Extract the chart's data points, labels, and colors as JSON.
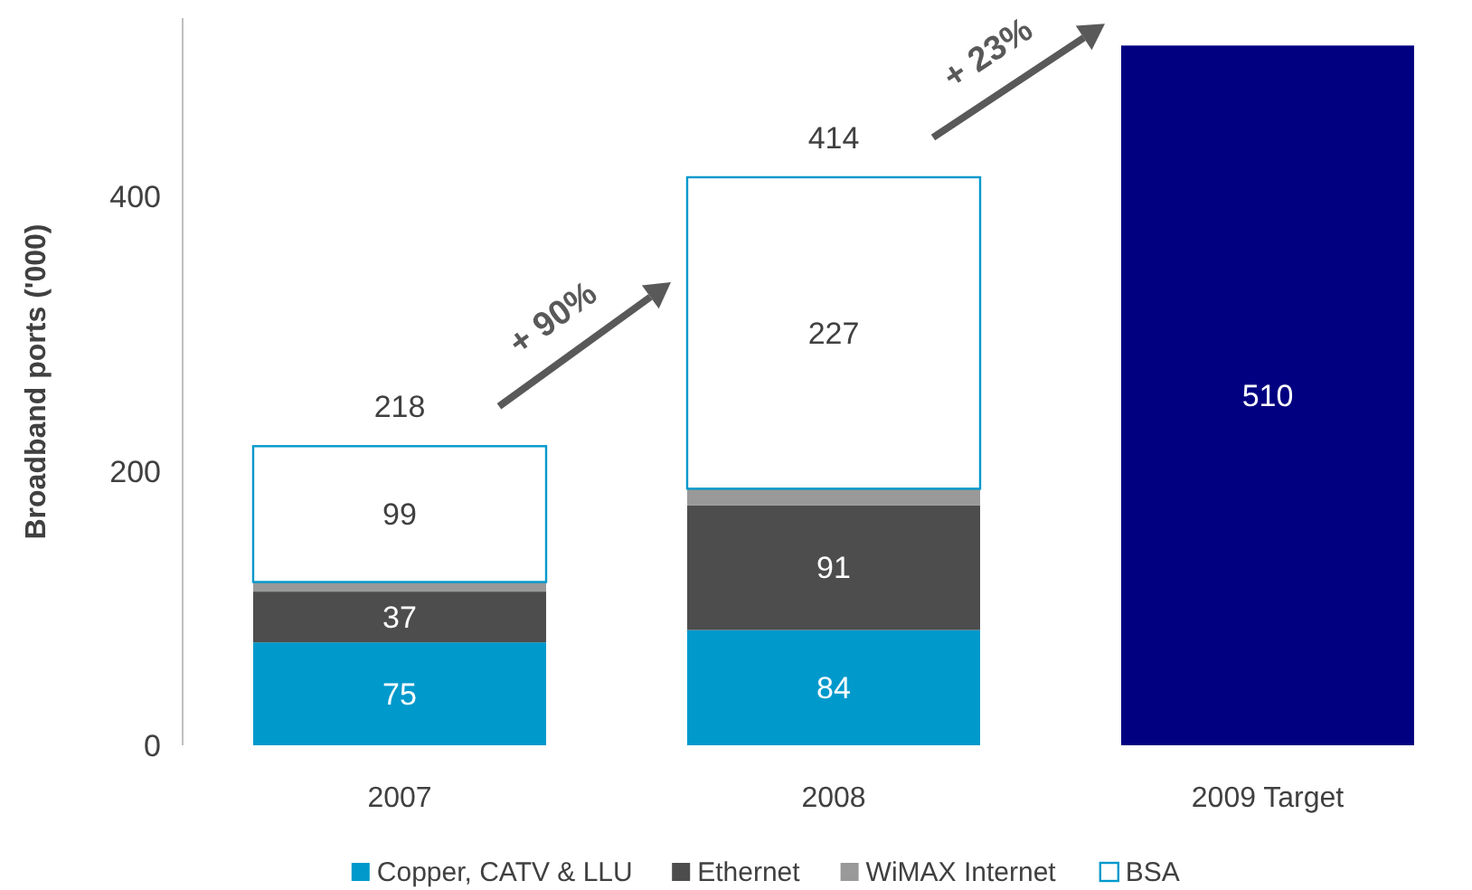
{
  "chart_data": {
    "type": "bar",
    "stacked": true,
    "ylabel": "Broadband ports ('000)",
    "categories": [
      "2007",
      "2008",
      "2009 Target"
    ],
    "series": [
      {
        "name": "Copper, CATV & LLU",
        "color": "#0099cc",
        "values": [
          75,
          84,
          null
        ],
        "value_labels": [
          "75",
          "84",
          null
        ]
      },
      {
        "name": "Ethernet",
        "color": "#4d4d4d",
        "values": [
          37,
          91,
          null
        ],
        "value_labels": [
          "37",
          "91",
          null
        ]
      },
      {
        "name": "WiMAX Internet",
        "color": "#999999",
        "values": [
          7,
          12,
          null
        ],
        "value_labels": [
          null,
          null,
          null
        ]
      },
      {
        "name": "BSA",
        "color": "#ffffff",
        "values": [
          99,
          227,
          null
        ],
        "value_labels": [
          "99",
          "227",
          null
        ]
      },
      {
        "color": "#000080",
        "values": [
          null,
          null,
          510
        ],
        "value_labels": [
          null,
          null,
          "510"
        ]
      }
    ],
    "totals": [
      "218",
      "414",
      null
    ],
    "annotations": [
      "+ 90%",
      "+ 23%"
    ],
    "ylim": [
      0,
      530
    ],
    "yticks": [
      0,
      200,
      400
    ],
    "grid": false,
    "legend": "bottom"
  }
}
